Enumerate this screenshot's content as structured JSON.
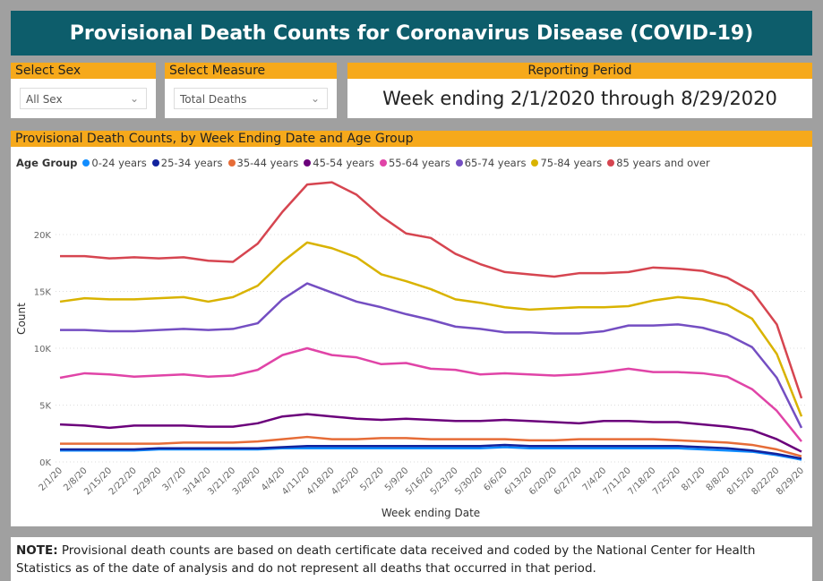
{
  "header": {
    "title": "Provisional Death Counts for Coronavirus Disease (COVID-19)"
  },
  "filters": {
    "sex": {
      "label": "Select Sex",
      "value": "All Sex"
    },
    "measure": {
      "label": "Select Measure",
      "value": "Total Deaths"
    },
    "period": {
      "label": "Reporting Period",
      "value": "Week ending 2/1/2020 through 8/29/2020"
    }
  },
  "note": {
    "prefix": "NOTE:",
    "text": " Provisional death counts are based on death certificate data received and coded by the National Center for Health Statistics as of the date of analysis and do not represent all deaths that occurred in that period."
  },
  "chart_data": {
    "type": "line",
    "title": "Provisional Death Counts, by Week Ending Date and Age Group",
    "legend_title": "Age Group",
    "legend_position": "top-left",
    "xlabel": "Week ending Date",
    "ylabel": "Count",
    "ylim": [
      0,
      25000
    ],
    "yticks": [
      0,
      5000,
      10000,
      15000,
      20000
    ],
    "ytick_labels": [
      "0K",
      "5K",
      "10K",
      "15K",
      "20K"
    ],
    "grid": true,
    "categories": [
      "2/1/20",
      "2/8/20",
      "2/15/20",
      "2/22/20",
      "2/29/20",
      "3/7/20",
      "3/14/20",
      "3/21/20",
      "3/28/20",
      "4/4/20",
      "4/11/20",
      "4/18/20",
      "4/25/20",
      "5/2/20",
      "5/9/20",
      "5/16/20",
      "5/23/20",
      "5/30/20",
      "6/6/20",
      "6/13/20",
      "6/20/20",
      "6/27/20",
      "7/4/20",
      "7/11/20",
      "7/18/20",
      "7/25/20",
      "8/1/20",
      "8/8/20",
      "8/15/20",
      "8/22/20",
      "8/29/20"
    ],
    "series": [
      {
        "name": "0-24 years",
        "color": "#118dff",
        "values": [
          1000,
          1000,
          1000,
          1000,
          1100,
          1100,
          1100,
          1100,
          1100,
          1200,
          1200,
          1200,
          1200,
          1200,
          1200,
          1200,
          1200,
          1200,
          1300,
          1200,
          1200,
          1200,
          1200,
          1200,
          1200,
          1200,
          1100,
          1000,
          900,
          600,
          200
        ]
      },
      {
        "name": "25-34 years",
        "color": "#12239e",
        "values": [
          1100,
          1100,
          1100,
          1100,
          1200,
          1200,
          1200,
          1200,
          1200,
          1300,
          1400,
          1400,
          1400,
          1400,
          1400,
          1400,
          1400,
          1400,
          1500,
          1400,
          1400,
          1400,
          1400,
          1400,
          1400,
          1400,
          1300,
          1200,
          1000,
          700,
          300
        ]
      },
      {
        "name": "35-44 years",
        "color": "#e66c37",
        "values": [
          1600,
          1600,
          1600,
          1600,
          1600,
          1700,
          1700,
          1700,
          1800,
          2000,
          2200,
          2000,
          2000,
          2100,
          2100,
          2000,
          2000,
          2000,
          2000,
          1900,
          1900,
          2000,
          2000,
          2000,
          2000,
          1900,
          1800,
          1700,
          1500,
          1100,
          500
        ]
      },
      {
        "name": "45-54 years",
        "color": "#6b007b",
        "values": [
          3300,
          3200,
          3000,
          3200,
          3200,
          3200,
          3100,
          3100,
          3400,
          4000,
          4200,
          4000,
          3800,
          3700,
          3800,
          3700,
          3600,
          3600,
          3700,
          3600,
          3500,
          3400,
          3600,
          3600,
          3500,
          3500,
          3300,
          3100,
          2800,
          2000,
          900
        ]
      },
      {
        "name": "55-64 years",
        "color": "#e044a7",
        "values": [
          7400,
          7800,
          7700,
          7500,
          7600,
          7700,
          7500,
          7600,
          8100,
          9400,
          10000,
          9400,
          9200,
          8600,
          8700,
          8200,
          8100,
          7700,
          7800,
          7700,
          7600,
          7700,
          7900,
          8200,
          7900,
          7900,
          7800,
          7500,
          6400,
          4500,
          1800
        ]
      },
      {
        "name": "65-74 years",
        "color": "#744ec2",
        "values": [
          11600,
          11600,
          11500,
          11500,
          11600,
          11700,
          11600,
          11700,
          12200,
          14300,
          15700,
          14900,
          14100,
          13600,
          13000,
          12500,
          11900,
          11700,
          11400,
          11400,
          11300,
          11300,
          11500,
          12000,
          12000,
          12100,
          11800,
          11200,
          10100,
          7400,
          3000
        ]
      },
      {
        "name": "75-84 years",
        "color": "#d9b300",
        "values": [
          14100,
          14400,
          14300,
          14300,
          14400,
          14500,
          14100,
          14500,
          15500,
          17600,
          19300,
          18800,
          18000,
          16500,
          15900,
          15200,
          14300,
          14000,
          13600,
          13400,
          13500,
          13600,
          13600,
          13700,
          14200,
          14500,
          14300,
          13800,
          12600,
          9500,
          4000
        ]
      },
      {
        "name": "85 years and over",
        "color": "#d64550",
        "values": [
          18100,
          18100,
          17900,
          18000,
          17900,
          18000,
          17700,
          17600,
          19200,
          22000,
          24400,
          24600,
          23500,
          21600,
          20100,
          19700,
          18300,
          17400,
          16700,
          16500,
          16300,
          16600,
          16600,
          16700,
          17100,
          17000,
          16800,
          16200,
          15000,
          12100,
          5600
        ]
      }
    ]
  }
}
